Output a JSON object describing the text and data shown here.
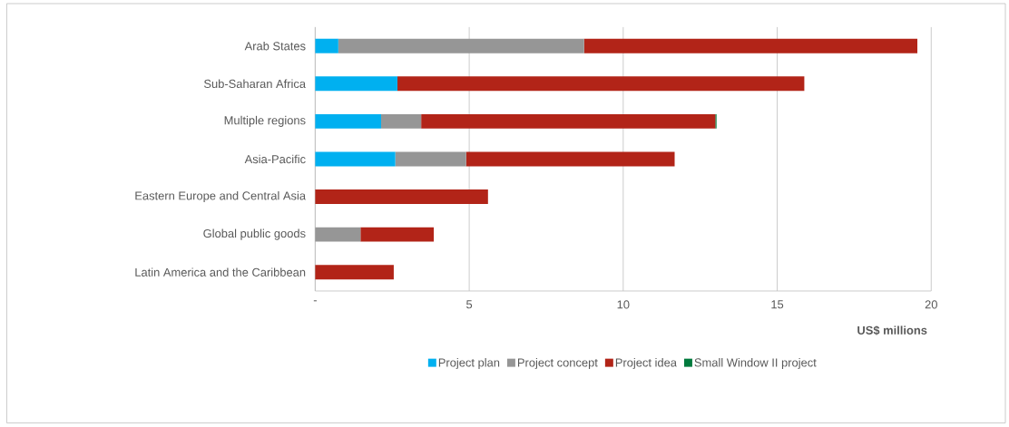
{
  "chart_data": {
    "type": "bar",
    "orientation": "horizontal",
    "stacked": true,
    "categories": [
      "Arab States",
      "Sub-Saharan Africa",
      "Multiple regions",
      "Asia-Pacific",
      "Eastern Europe and Central Asia",
      "Global public goods",
      "Latin America and the Caribbean"
    ],
    "series": [
      {
        "name": "Project plan",
        "color": "#00b0f0",
        "values": [
          0.75,
          2.67,
          2.14,
          2.6,
          null,
          null,
          null
        ]
      },
      {
        "name": "Project concept",
        "color": "#969696",
        "values": [
          7.98,
          null,
          1.3,
          2.3,
          null,
          1.47,
          null
        ]
      },
      {
        "name": "Project idea",
        "color": "#b22418",
        "values": [
          10.82,
          13.21,
          9.55,
          6.77,
          5.61,
          2.38,
          2.55
        ]
      },
      {
        "name": "Small Window II project",
        "color": "#007a3d",
        "values": [
          null,
          null,
          0.04,
          null,
          null,
          null,
          null
        ]
      }
    ],
    "xlim": [
      0,
      20
    ],
    "xticks": [
      {
        "value": 0,
        "label": "-"
      },
      5,
      10,
      15,
      20
    ],
    "xlabel": "US$ millions",
    "grid": "x",
    "legend": "bottom"
  }
}
